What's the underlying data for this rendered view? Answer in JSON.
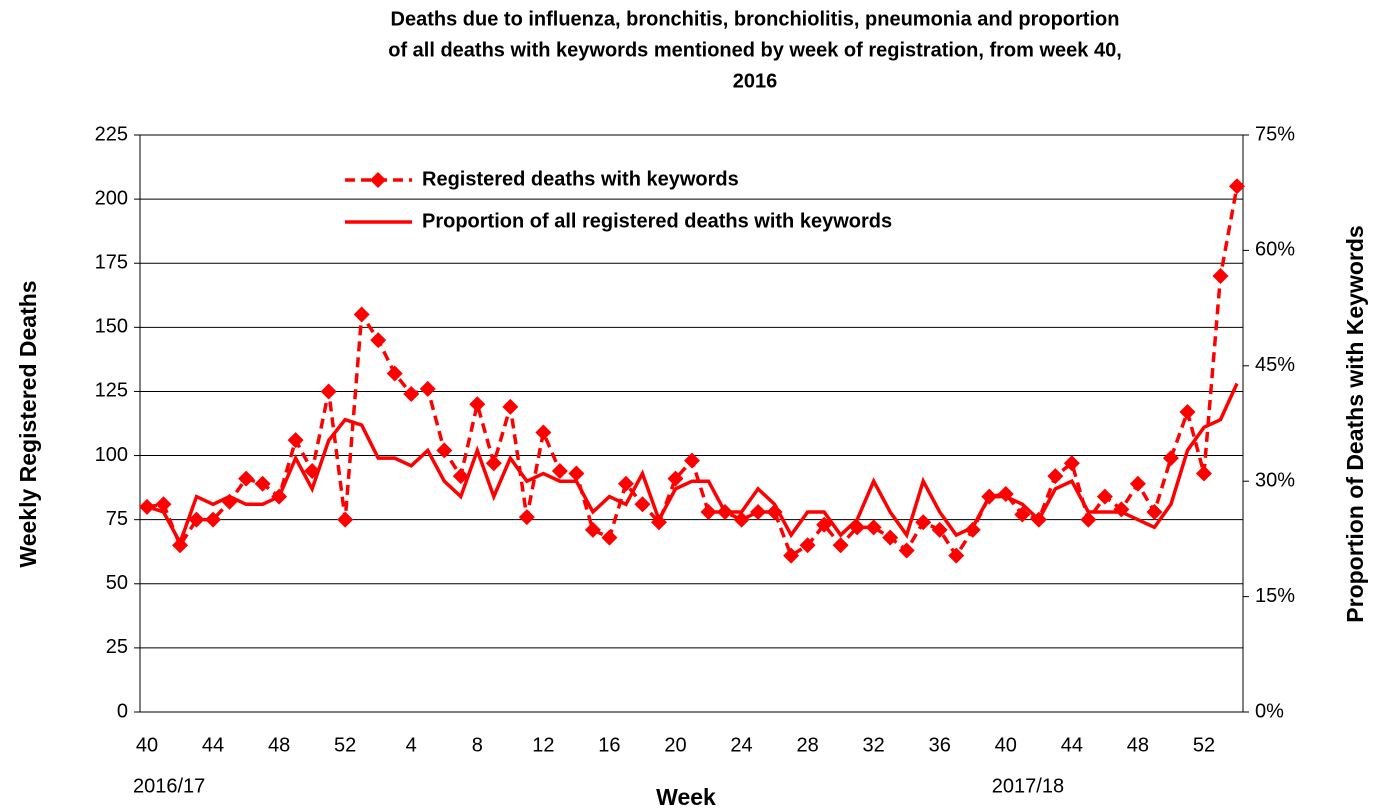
{
  "chart_data": {
    "type": "line",
    "title": [
      "Deaths due to influenza, bronchitis, bronchiolitis, pneumonia and proportion",
      "of all deaths with keywords mentioned by week of registration, from week 40,",
      "2016"
    ],
    "x_label": "Week",
    "y_label": "Weekly Registered Deaths",
    "y2_label": "Proportion of Deaths with Keywords",
    "categories": [
      "40",
      null,
      null,
      null,
      "44",
      null,
      null,
      null,
      "48",
      null,
      null,
      null,
      "52",
      null,
      null,
      null,
      "4",
      null,
      null,
      null,
      "8",
      null,
      null,
      null,
      "12",
      null,
      null,
      null,
      "16",
      null,
      null,
      null,
      "20",
      null,
      null,
      null,
      "24",
      null,
      null,
      null,
      "28",
      null,
      null,
      null,
      "32",
      null,
      null,
      null,
      "36",
      null,
      null,
      null,
      "40",
      null,
      null,
      null,
      "44",
      null,
      null,
      null,
      "48",
      null,
      null,
      null,
      "52",
      null,
      null
    ],
    "seasons": [
      "2016/17",
      null,
      null,
      null,
      null,
      null,
      null,
      null,
      null,
      null,
      null,
      null,
      null,
      null,
      null,
      null,
      null,
      null,
      null,
      null,
      null,
      null,
      null,
      null,
      null,
      null,
      null,
      null,
      null,
      null,
      null,
      null,
      null,
      null,
      null,
      null,
      null,
      null,
      null,
      null,
      null,
      null,
      null,
      null,
      null,
      null,
      null,
      null,
      null,
      null,
      null,
      null,
      "2017/18",
      null,
      null,
      null,
      null,
      null,
      null,
      null,
      null,
      null,
      null,
      null,
      null,
      null,
      null
    ],
    "ylim": [
      0,
      225
    ],
    "yticks": [
      0,
      25,
      50,
      75,
      100,
      125,
      150,
      175,
      200,
      225
    ],
    "y2lim": [
      0,
      75
    ],
    "y2ticks": [
      {
        "value": 0,
        "label": "0%"
      },
      {
        "value": 15,
        "label": "15%"
      },
      {
        "value": 30,
        "label": "30%"
      },
      {
        "value": 45,
        "label": "45%"
      },
      {
        "value": 60,
        "label": "60%"
      },
      {
        "value": 75,
        "label": "75%"
      }
    ],
    "grid": true,
    "legend": "top",
    "series": [
      {
        "name": "Registered deaths with keywords",
        "color": "#ff0000",
        "dashed": true,
        "marker": "diamond",
        "values": [
          80,
          81,
          65,
          75,
          75,
          82,
          91,
          89,
          84,
          106,
          94,
          125,
          75,
          155,
          145,
          132,
          124,
          126,
          102,
          92,
          120,
          97,
          119,
          76,
          109,
          94,
          93,
          71,
          68,
          89,
          81,
          74,
          91,
          98,
          78,
          78,
          75,
          78,
          78,
          61,
          65,
          73,
          65,
          72,
          72,
          68,
          63,
          74,
          71,
          61,
          71,
          84,
          85,
          77,
          75,
          92,
          97,
          75,
          84,
          79,
          89,
          78,
          99,
          117,
          93,
          170,
          205
        ]
      },
      {
        "name": "Proportion of all registered deaths with keywords",
        "color": "#ff0000",
        "dashed": false,
        "axis": "y2",
        "values": [
          26.7,
          26,
          22,
          28,
          27,
          28,
          27,
          27,
          28,
          33,
          29,
          35.3,
          38,
          37.3,
          33,
          33,
          32,
          34,
          30,
          28,
          34,
          28,
          33,
          30,
          31,
          30,
          30,
          26,
          28,
          27,
          31,
          25,
          29,
          30,
          30,
          26,
          26,
          29,
          27,
          23,
          26,
          26,
          23,
          25,
          30,
          26,
          23,
          30,
          26,
          23,
          24,
          28,
          28,
          27,
          25,
          29,
          30,
          26,
          26,
          26,
          25,
          24,
          27,
          34,
          37,
          38,
          42.7
        ]
      }
    ]
  }
}
